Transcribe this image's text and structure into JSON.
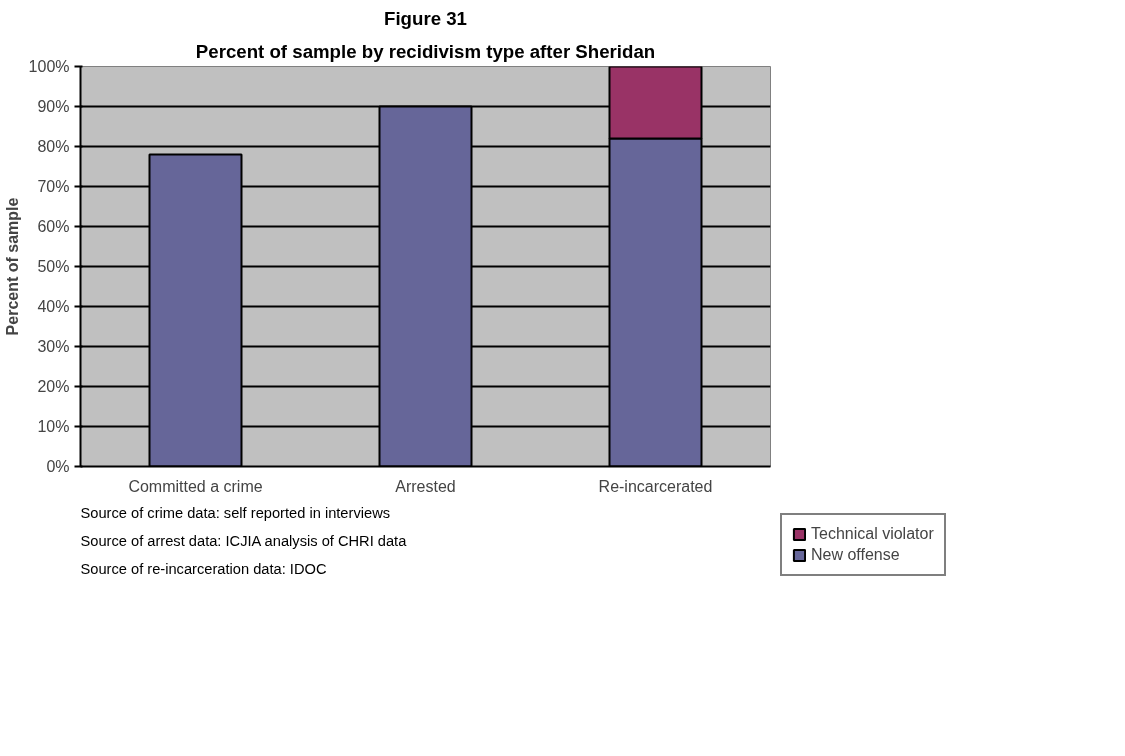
{
  "chart_data": {
    "type": "bar",
    "title": "Figure 31",
    "subtitle": "Percent of sample by recidivism type after Sheridan",
    "ylabel": "Percent of sample",
    "categories": [
      "Committed a crime",
      "Arrested",
      "Re-incarcerated"
    ],
    "stacked": true,
    "series": [
      {
        "name": "New offense",
        "color": "#666699",
        "values": [
          78,
          90,
          82
        ]
      },
      {
        "name": "Technical violator",
        "color": "#993366",
        "values": [
          null,
          null,
          18
        ]
      }
    ],
    "ylim": [
      0,
      100
    ],
    "yticks": [
      {
        "value": 0,
        "label": "0%"
      },
      {
        "value": 10,
        "label": "10%"
      },
      {
        "value": 20,
        "label": "20%"
      },
      {
        "value": 30,
        "label": "30%"
      },
      {
        "value": 40,
        "label": "40%"
      },
      {
        "value": 50,
        "label": "50%"
      },
      {
        "value": 60,
        "label": "60%"
      },
      {
        "value": 70,
        "label": "70%"
      },
      {
        "value": 80,
        "label": "80%"
      },
      {
        "value": 90,
        "label": "90%"
      },
      {
        "value": 100,
        "label": "100%"
      }
    ],
    "grid": "y",
    "legend": "right",
    "annotations": [
      "Source of crime data: self reported in interviews",
      "Source of arrest data: ICJIA analysis of CHRI data",
      "Source of re-incarceration data: IDOC"
    ]
  }
}
